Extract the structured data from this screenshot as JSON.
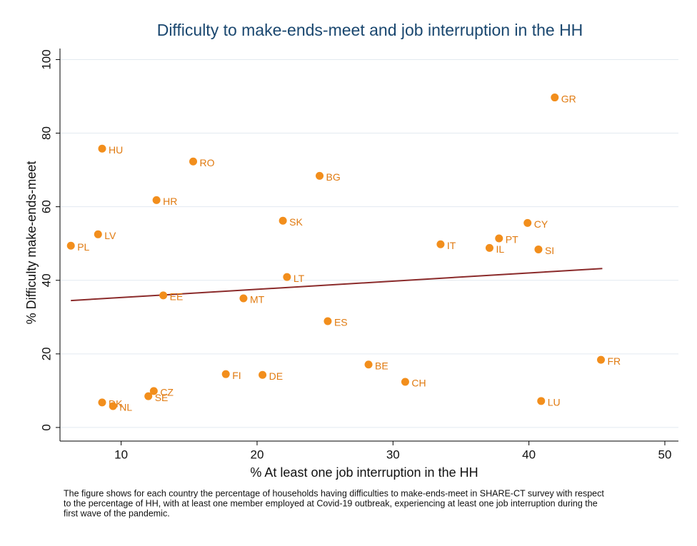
{
  "chart_data": {
    "type": "scatter",
    "title": "Difficulty to make-ends-meet and job interruption in the HH",
    "xlabel": "% At least one job interruption in the HH",
    "ylabel": "% Difficulty make-ends-meet",
    "labels": [
      "GR",
      "HU",
      "RO",
      "BG",
      "HR",
      "SK",
      "CY",
      "LV",
      "PT",
      "PL",
      "IT",
      "IL",
      "SI",
      "LT",
      "EE",
      "MT",
      "ES",
      "FR",
      "BE",
      "FI",
      "DE",
      "CH",
      "CZ",
      "LU",
      "SE",
      "DK",
      "NL"
    ],
    "x": [
      41.9,
      8.6,
      15.3,
      24.6,
      12.6,
      21.9,
      39.9,
      8.3,
      37.8,
      6.3,
      33.5,
      37.1,
      40.7,
      22.2,
      13.1,
      19.0,
      25.2,
      45.3,
      28.2,
      17.7,
      20.4,
      30.9,
      12.4,
      40.9,
      12.0,
      8.6,
      9.4
    ],
    "y": [
      89.7,
      75.8,
      72.3,
      68.4,
      61.8,
      56.2,
      55.6,
      52.5,
      51.4,
      49.4,
      49.8,
      48.8,
      48.4,
      40.9,
      35.9,
      35.1,
      28.9,
      18.4,
      17.1,
      14.5,
      14.3,
      12.4,
      9.9,
      7.2,
      8.5,
      6.8,
      5.8
    ],
    "color": "#f28e1c",
    "label_color": "#e07a10",
    "fit": {
      "x": [
        6.3,
        45.4
      ],
      "y": [
        34.5,
        43.2
      ],
      "color": "#8b2b2b"
    },
    "xlim": [
      5.5,
      51
    ],
    "ylim": [
      -3.7,
      103
    ],
    "xticks": [
      10,
      20,
      30,
      40,
      50
    ],
    "yticks": [
      0,
      20,
      40,
      60,
      80,
      100
    ],
    "grid": true,
    "note": [
      "The figure shows for each country the percentage of households having difficulties to make-ends-meet in SHARE-CT survey with respect",
      "to the percentage of HH, with at least one member employed at Covid-19 outbreak, experiencing at least one job interruption during the",
      "first wave of the pandemic."
    ]
  }
}
